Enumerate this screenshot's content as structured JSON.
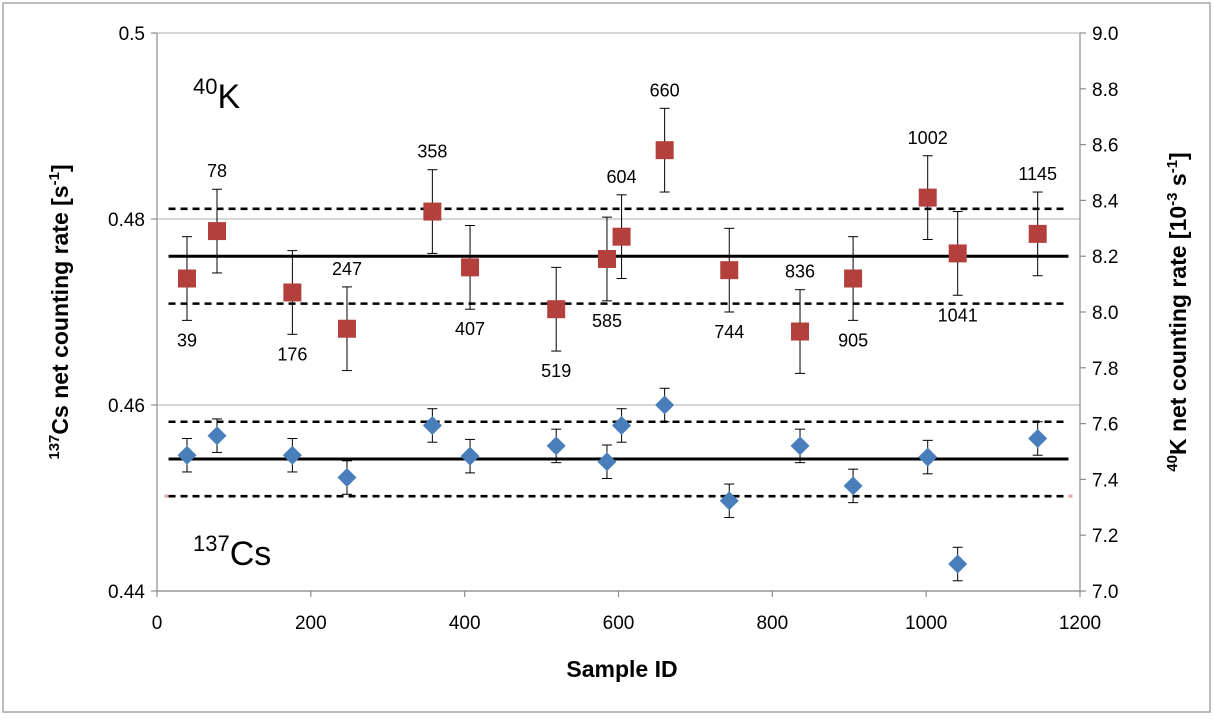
{
  "chart_data": {
    "type": "scatter",
    "xlabel": "Sample ID",
    "ylabel_left": {
      "sup": "137",
      "main": "Cs net counting rate [s",
      "sup2": "-1",
      "end": "]"
    },
    "ylabel_right": {
      "sup": "40",
      "main": "K net counting rate [10",
      "sup2": "-3",
      "mid": " s",
      "sup3": "-1",
      "end": "]"
    },
    "xlim": [
      0,
      1200
    ],
    "xticks": [
      0,
      200,
      400,
      600,
      800,
      1000,
      1200
    ],
    "ylim_left": [
      0.44,
      0.5
    ],
    "yticks_left": [
      "0.44",
      "0.46",
      "0.48",
      "0.5"
    ],
    "ylim_right": [
      7.0,
      9.0
    ],
    "yticks_right": [
      "7.0",
      "7.2",
      "7.4",
      "7.6",
      "7.8",
      "8.0",
      "8.2",
      "8.4",
      "8.6",
      "8.8",
      "9.0"
    ],
    "grid": "horizontal major gridlines on left axis",
    "annotations": {
      "k_label": {
        "sup": "40",
        "main": "K"
      },
      "cs_label": {
        "sup": "137",
        "main": "Cs"
      }
    },
    "series": [
      {
        "name": "40K",
        "axis": "right",
        "marker": "square",
        "color": "#b3403c",
        "points": [
          {
            "x": 39,
            "y": 8.12,
            "err": 0.15,
            "label": "39",
            "label_pos": "below"
          },
          {
            "x": 78,
            "y": 8.29,
            "err": 0.15,
            "label": "78",
            "label_pos": "above"
          },
          {
            "x": 176,
            "y": 8.07,
            "err": 0.15,
            "label": "176",
            "label_pos": "below"
          },
          {
            "x": 247,
            "y": 7.94,
            "err": 0.15,
            "label": "247",
            "label_pos": "above"
          },
          {
            "x": 358,
            "y": 8.36,
            "err": 0.15,
            "label": "358",
            "label_pos": "above"
          },
          {
            "x": 407,
            "y": 8.16,
            "err": 0.15,
            "label": "407",
            "label_pos": "below"
          },
          {
            "x": 519,
            "y": 8.01,
            "err": 0.15,
            "label": "519",
            "label_pos": "below"
          },
          {
            "x": 585,
            "y": 8.19,
            "err": 0.15,
            "label": "585",
            "label_pos": "below"
          },
          {
            "x": 604,
            "y": 8.27,
            "err": 0.15,
            "label": "604",
            "label_pos": "above"
          },
          {
            "x": 660,
            "y": 8.58,
            "err": 0.15,
            "label": "660",
            "label_pos": "above"
          },
          {
            "x": 744,
            "y": 8.15,
            "err": 0.15,
            "label": "744",
            "label_pos": "below"
          },
          {
            "x": 836,
            "y": 7.93,
            "err": 0.15,
            "label": "836",
            "label_pos": "above"
          },
          {
            "x": 905,
            "y": 8.12,
            "err": 0.15,
            "label": "905",
            "label_pos": "below"
          },
          {
            "x": 1002,
            "y": 8.41,
            "err": 0.15,
            "label": "1002",
            "label_pos": "above"
          },
          {
            "x": 1041,
            "y": 8.21,
            "err": 0.15,
            "label": "1041",
            "label_pos": "below"
          },
          {
            "x": 1145,
            "y": 8.28,
            "err": 0.15,
            "label": "1145",
            "label_pos": "above"
          }
        ],
        "mean_line": 8.2,
        "band_lines": [
          8.37,
          8.03
        ]
      },
      {
        "name": "137Cs",
        "axis": "left",
        "marker": "diamond",
        "color": "#4a7ebb",
        "points": [
          {
            "x": 39,
            "y": 0.4546,
            "err": 0.0018
          },
          {
            "x": 78,
            "y": 0.4567,
            "err": 0.0018
          },
          {
            "x": 176,
            "y": 0.4546,
            "err": 0.0018
          },
          {
            "x": 247,
            "y": 0.4522,
            "err": 0.0018
          },
          {
            "x": 358,
            "y": 0.4578,
            "err": 0.0018
          },
          {
            "x": 407,
            "y": 0.4545,
            "err": 0.0018
          },
          {
            "x": 519,
            "y": 0.4556,
            "err": 0.0018
          },
          {
            "x": 585,
            "y": 0.4539,
            "err": 0.0018
          },
          {
            "x": 604,
            "y": 0.4578,
            "err": 0.0018
          },
          {
            "x": 660,
            "y": 0.46,
            "err": 0.0018
          },
          {
            "x": 744,
            "y": 0.4497,
            "err": 0.0018
          },
          {
            "x": 836,
            "y": 0.4556,
            "err": 0.0018
          },
          {
            "x": 905,
            "y": 0.4513,
            "err": 0.0018
          },
          {
            "x": 1002,
            "y": 0.4544,
            "err": 0.0018
          },
          {
            "x": 1041,
            "y": 0.4429,
            "err": 0.0018
          },
          {
            "x": 1145,
            "y": 0.4564,
            "err": 0.0018
          }
        ],
        "mean_line": 0.4542,
        "band_lines": [
          0.4582,
          0.4502
        ]
      }
    ]
  },
  "colors": {
    "k_marker": "#b3403c",
    "cs_marker": "#4a7ebb",
    "grid": "#bfbfbf",
    "frame": "#a6a6a6"
  }
}
